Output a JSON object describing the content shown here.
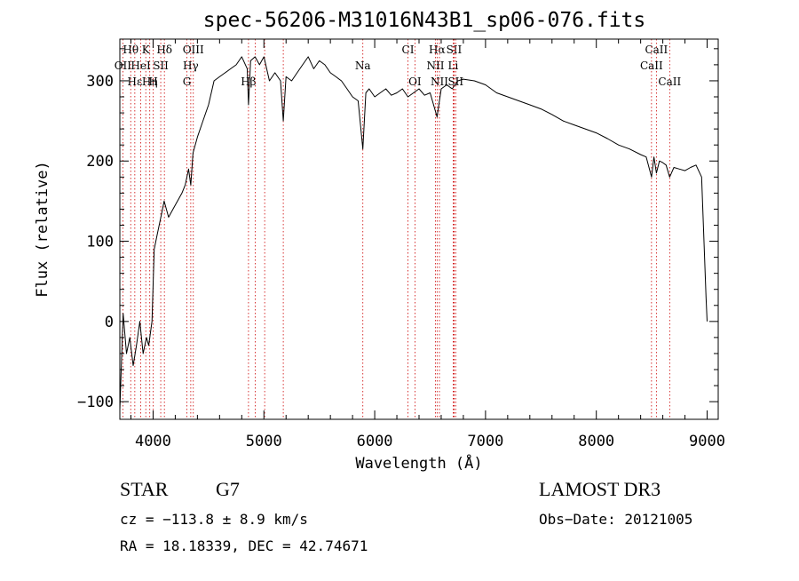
{
  "chart_data": {
    "type": "line",
    "title": "spec-56206-M31016N43B1_sp06-076.fits",
    "xlabel": "Wavelength (Å)",
    "ylabel": "Flux (relative)",
    "xlim": [
      3700,
      9100
    ],
    "ylim": [
      -122,
      352
    ],
    "xticks": [
      4000,
      5000,
      6000,
      7000,
      8000,
      9000
    ],
    "yticks": [
      -100,
      0,
      100,
      200,
      300
    ],
    "grid": false,
    "series": [
      {
        "x": [
          3700,
          3730,
          3760,
          3790,
          3820,
          3850,
          3880,
          3910,
          3940,
          3960,
          3990,
          4010,
          4040,
          4070,
          4100,
          4140,
          4180,
          4220,
          4260,
          4290,
          4320,
          4340,
          4360,
          4400,
          4450,
          4500,
          4550,
          4600,
          4650,
          4700,
          4750,
          4800,
          4850,
          4861,
          4880,
          4920,
          4960,
          5000,
          5050,
          5100,
          5150,
          5175,
          5200,
          5250,
          5300,
          5350,
          5400,
          5450,
          5500,
          5550,
          5600,
          5650,
          5700,
          5750,
          5800,
          5850,
          5893,
          5920,
          5950,
          6000,
          6050,
          6100,
          6150,
          6200,
          6250,
          6300,
          6350,
          6400,
          6450,
          6500,
          6563,
          6600,
          6650,
          6700,
          6750,
          6800,
          6900,
          7000,
          7100,
          7200,
          7300,
          7400,
          7500,
          7600,
          7700,
          7800,
          7900,
          8000,
          8100,
          8200,
          8300,
          8400,
          8450,
          8498,
          8520,
          8542,
          8570,
          8600,
          8630,
          8662,
          8700,
          8750,
          8800,
          8850,
          8900,
          8950,
          8990,
          9000
        ],
        "y": [
          -110,
          10,
          -40,
          -20,
          -55,
          -30,
          0,
          -40,
          -20,
          -30,
          0,
          90,
          110,
          130,
          150,
          130,
          140,
          150,
          160,
          170,
          190,
          170,
          210,
          230,
          250,
          270,
          300,
          305,
          310,
          315,
          320,
          330,
          315,
          270,
          325,
          330,
          320,
          330,
          300,
          310,
          300,
          250,
          305,
          300,
          310,
          320,
          330,
          315,
          325,
          320,
          310,
          305,
          300,
          290,
          280,
          275,
          215,
          285,
          290,
          280,
          285,
          290,
          282,
          285,
          290,
          280,
          285,
          290,
          282,
          285,
          255,
          290,
          295,
          290,
          300,
          302,
          300,
          295,
          285,
          280,
          275,
          270,
          265,
          258,
          250,
          245,
          240,
          235,
          228,
          220,
          215,
          208,
          205,
          180,
          205,
          185,
          200,
          198,
          195,
          180,
          192,
          190,
          188,
          192,
          195,
          180,
          30,
          0
        ]
      }
    ],
    "spectral_lines": [
      {
        "label": "Hθ",
        "x": 3798,
        "row": 1
      },
      {
        "label": "K",
        "x": 3934,
        "row": 1
      },
      {
        "label": "Hδ",
        "x": 4102,
        "row": 1
      },
      {
        "label": "OIII",
        "x": 4363,
        "row": 1
      },
      {
        "label": "CI",
        "x": 6300,
        "row": 1
      },
      {
        "label": "Hα",
        "x": 6563,
        "row": 1
      },
      {
        "label": "SII",
        "x": 6716,
        "row": 1
      },
      {
        "label": "CaII",
        "x": 8542,
        "row": 1
      },
      {
        "label": "OII",
        "x": 3727,
        "row": 2
      },
      {
        "label": "HeI",
        "x": 3889,
        "row": 2
      },
      {
        "label": "SII",
        "x": 4069,
        "row": 2
      },
      {
        "label": "Hγ",
        "x": 4340,
        "row": 2
      },
      {
        "label": "Na",
        "x": 5893,
        "row": 2
      },
      {
        "label": "NII",
        "x": 6548,
        "row": 2
      },
      {
        "label": "Li",
        "x": 6708,
        "row": 2
      },
      {
        "label": "CaII",
        "x": 8498,
        "row": 2
      },
      {
        "label": "Hε",
        "x": 3835,
        "row": 3
      },
      {
        "label": "Hη",
        "x": 3970,
        "row": 3
      },
      {
        "label": "H",
        "x": 4001,
        "row": 3
      },
      {
        "label": "G",
        "x": 4305,
        "row": 3
      },
      {
        "label": "Hβ",
        "x": 4861,
        "row": 3
      },
      {
        "label": "OI",
        "x": 6363,
        "row": 3
      },
      {
        "label": "NII",
        "x": 6584,
        "row": 3
      },
      {
        "label": "SII",
        "x": 6731,
        "row": 3
      },
      {
        "label": "CaII",
        "x": 8662,
        "row": 3
      }
    ],
    "extra_line_positions": [
      4922,
      5007,
      5175,
      6717
    ]
  },
  "info": {
    "class": "STAR",
    "subclass": "G7",
    "survey": "LAMOST DR3",
    "cz": "cz = −113.8 ± 8.9 km/s",
    "obs_date": "Obs−Date: 20121005",
    "radec": "RA =  18.18339, DEC =  42.74671"
  },
  "colors": {
    "axis": "#000000",
    "spectrum": "#000000",
    "lines": "#cc0000"
  }
}
